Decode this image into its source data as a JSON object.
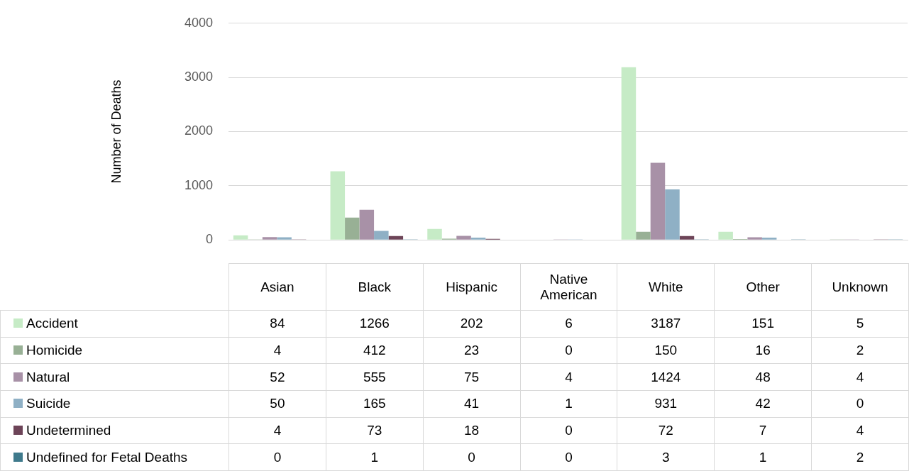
{
  "chart_data": {
    "type": "bar",
    "ylabel": "Number of Deaths",
    "categories": [
      "Asian",
      "Black",
      "Hispanic",
      "Native American",
      "White",
      "Other",
      "Unknown"
    ],
    "series": [
      {
        "name": "Accident",
        "color": "#c6ebc6",
        "values": [
          84,
          1266,
          202,
          6,
          3187,
          151,
          5
        ]
      },
      {
        "name": "Homicide",
        "color": "#98b095",
        "values": [
          4,
          412,
          23,
          0,
          150,
          16,
          2
        ]
      },
      {
        "name": "Natural",
        "color": "#a891a7",
        "values": [
          52,
          555,
          75,
          4,
          1424,
          48,
          4
        ]
      },
      {
        "name": "Suicide",
        "color": "#8fb0c5",
        "values": [
          50,
          165,
          41,
          1,
          931,
          42,
          0
        ]
      },
      {
        "name": "Undetermined",
        "color": "#6d4458",
        "values": [
          4,
          73,
          18,
          0,
          72,
          7,
          4
        ]
      },
      {
        "name": "Undefined for Fetal Deaths",
        "color": "#3f7a8c",
        "values": [
          0,
          1,
          0,
          0,
          3,
          1,
          2
        ]
      }
    ],
    "ylim": [
      0,
      4000
    ],
    "yticks": [
      0,
      1000,
      2000,
      3000,
      4000
    ],
    "grid": "y",
    "legend": "bottom",
    "data_labels": true
  }
}
